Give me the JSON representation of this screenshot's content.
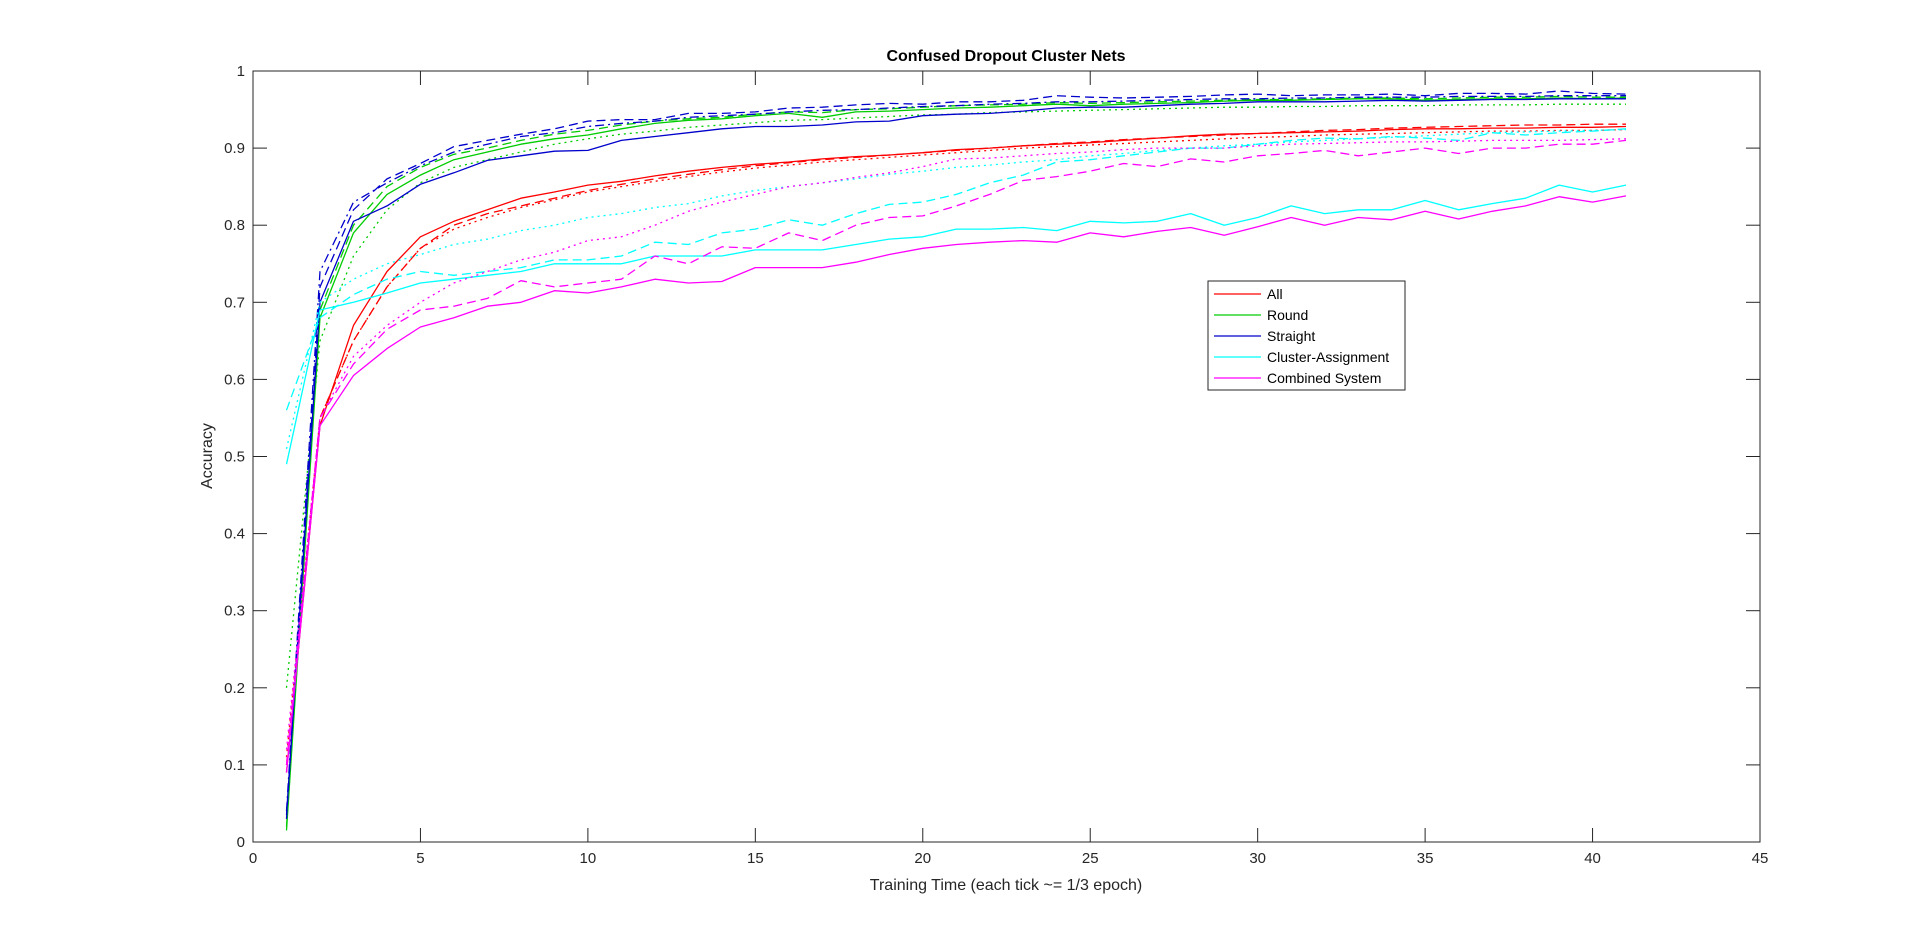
{
  "chart_data": {
    "type": "line",
    "title": "Confused Dropout Cluster Nets",
    "xlabel": "Training Time (each tick ~= 1/3 epoch)",
    "ylabel": "Accuracy",
    "xlim": [
      0,
      45
    ],
    "ylim": [
      0,
      1
    ],
    "xticks": [
      0,
      5,
      10,
      15,
      20,
      25,
      30,
      35,
      40,
      45
    ],
    "yticks": [
      0,
      0.1,
      0.2,
      0.3,
      0.4,
      0.5,
      0.6,
      0.7,
      0.8,
      0.9,
      1
    ],
    "grid": false,
    "legend_position": "center-right",
    "x": [
      1,
      2,
      3,
      4,
      5,
      6,
      7,
      8,
      9,
      10,
      11,
      12,
      13,
      14,
      15,
      16,
      17,
      18,
      19,
      20,
      21,
      22,
      23,
      24,
      25,
      26,
      27,
      28,
      29,
      30,
      31,
      32,
      33,
      34,
      35,
      36,
      37,
      38,
      39,
      40,
      41
    ],
    "legend": [
      {
        "label": "All",
        "color": "#ff0000"
      },
      {
        "label": "Round",
        "color": "#00cc00"
      },
      {
        "label": "Straight",
        "color": "#0000cc"
      },
      {
        "label": "Cluster-Assignment",
        "color": "#00ffff"
      },
      {
        "label": "Combined System",
        "color": "#ff00ff"
      }
    ],
    "series": [
      {
        "group": "All",
        "style": "solid",
        "color": "#ff0000",
        "values": [
          0.09,
          0.54,
          0.67,
          0.74,
          0.785,
          0.805,
          0.82,
          0.835,
          0.843,
          0.852,
          0.857,
          0.864,
          0.87,
          0.875,
          0.879,
          0.882,
          0.886,
          0.889,
          0.891,
          0.894,
          0.898,
          0.9,
          0.903,
          0.905,
          0.907,
          0.91,
          0.913,
          0.916,
          0.918,
          0.919,
          0.92,
          0.921,
          0.922,
          0.924,
          0.925,
          0.925,
          0.926,
          0.926,
          0.927,
          0.927,
          0.928
        ]
      },
      {
        "group": "All",
        "style": "dashed",
        "color": "#ff0000",
        "values": [
          0.1,
          0.55,
          0.65,
          0.72,
          0.77,
          0.8,
          0.815,
          0.825,
          0.835,
          0.845,
          0.853,
          0.86,
          0.866,
          0.872,
          0.877,
          0.881,
          0.885,
          0.888,
          0.891,
          0.894,
          0.897,
          0.9,
          0.903,
          0.906,
          0.908,
          0.911,
          0.913,
          0.915,
          0.917,
          0.919,
          0.921,
          0.923,
          0.924,
          0.926,
          0.927,
          0.928,
          0.929,
          0.93,
          0.93,
          0.931,
          0.931
        ]
      },
      {
        "group": "All",
        "style": "dotted",
        "color": "#ff0000",
        "values": [
          0.11,
          0.55,
          0.65,
          0.72,
          0.77,
          0.795,
          0.81,
          0.823,
          0.833,
          0.843,
          0.85,
          0.857,
          0.863,
          0.869,
          0.874,
          0.878,
          0.882,
          0.885,
          0.888,
          0.891,
          0.894,
          0.897,
          0.9,
          0.902,
          0.904,
          0.906,
          0.908,
          0.91,
          0.912,
          0.914,
          0.915,
          0.917,
          0.918,
          0.919,
          0.92,
          0.921,
          0.922,
          0.922,
          0.923,
          0.923,
          0.924
        ]
      },
      {
        "group": "Round",
        "style": "solid",
        "color": "#00cc00",
        "values": [
          0.015,
          0.68,
          0.79,
          0.84,
          0.865,
          0.885,
          0.895,
          0.905,
          0.912,
          0.917,
          0.925,
          0.932,
          0.936,
          0.938,
          0.942,
          0.945,
          0.94,
          0.947,
          0.948,
          0.95,
          0.952,
          0.953,
          0.955,
          0.957,
          0.955,
          0.957,
          0.958,
          0.959,
          0.961,
          0.962,
          0.962,
          0.963,
          0.964,
          0.964,
          0.962,
          0.963,
          0.964,
          0.964,
          0.965,
          0.964,
          0.965
        ]
      },
      {
        "group": "Round",
        "style": "dashed",
        "color": "#00cc00",
        "values": [
          0.02,
          0.69,
          0.8,
          0.85,
          0.875,
          0.892,
          0.9,
          0.91,
          0.918,
          0.923,
          0.93,
          0.935,
          0.938,
          0.94,
          0.944,
          0.947,
          0.946,
          0.95,
          0.951,
          0.953,
          0.955,
          0.956,
          0.957,
          0.959,
          0.958,
          0.959,
          0.96,
          0.961,
          0.962,
          0.963,
          0.963,
          0.964,
          0.965,
          0.965,
          0.964,
          0.965,
          0.966,
          0.966,
          0.967,
          0.966,
          0.966
        ]
      },
      {
        "group": "Round",
        "style": "dotted",
        "color": "#00cc00",
        "values": [
          0.2,
          0.65,
          0.76,
          0.82,
          0.855,
          0.875,
          0.885,
          0.895,
          0.905,
          0.912,
          0.918,
          0.922,
          0.927,
          0.93,
          0.933,
          0.936,
          0.937,
          0.939,
          0.941,
          0.943,
          0.944,
          0.946,
          0.947,
          0.948,
          0.949,
          0.95,
          0.951,
          0.952,
          0.953,
          0.953,
          0.954,
          0.954,
          0.955,
          0.955,
          0.955,
          0.956,
          0.956,
          0.956,
          0.957,
          0.957,
          0.957
        ]
      },
      {
        "group": "Straight",
        "style": "solid",
        "color": "#0000cc",
        "values": [
          0.035,
          0.7,
          0.805,
          0.825,
          0.853,
          0.868,
          0.884,
          0.89,
          0.896,
          0.897,
          0.91,
          0.915,
          0.92,
          0.925,
          0.928,
          0.928,
          0.93,
          0.934,
          0.935,
          0.942,
          0.944,
          0.945,
          0.948,
          0.952,
          0.953,
          0.953,
          0.955,
          0.957,
          0.958,
          0.96,
          0.96,
          0.96,
          0.961,
          0.962,
          0.961,
          0.962,
          0.963,
          0.963,
          0.964,
          0.964,
          0.964
        ]
      },
      {
        "group": "Straight",
        "style": "dashed",
        "color": "#0000cc",
        "values": [
          0.03,
          0.72,
          0.82,
          0.86,
          0.88,
          0.902,
          0.91,
          0.918,
          0.925,
          0.935,
          0.937,
          0.937,
          0.945,
          0.945,
          0.947,
          0.952,
          0.953,
          0.956,
          0.958,
          0.957,
          0.96,
          0.96,
          0.962,
          0.968,
          0.966,
          0.965,
          0.966,
          0.967,
          0.969,
          0.97,
          0.968,
          0.969,
          0.969,
          0.97,
          0.968,
          0.971,
          0.971,
          0.97,
          0.974,
          0.971,
          0.97
        ]
      },
      {
        "group": "Straight",
        "style": "dashdot",
        "color": "#0000cc",
        "values": [
          0.04,
          0.74,
          0.83,
          0.855,
          0.877,
          0.895,
          0.905,
          0.915,
          0.92,
          0.928,
          0.932,
          0.935,
          0.94,
          0.942,
          0.944,
          0.947,
          0.949,
          0.95,
          0.952,
          0.954,
          0.955,
          0.957,
          0.958,
          0.96,
          0.96,
          0.961,
          0.962,
          0.963,
          0.964,
          0.964,
          0.965,
          0.965,
          0.966,
          0.966,
          0.966,
          0.967,
          0.967,
          0.967,
          0.968,
          0.968,
          0.968
        ]
      },
      {
        "group": "Cluster-Assignment",
        "style": "solid",
        "color": "#00ffff",
        "values": [
          0.49,
          0.69,
          0.7,
          0.712,
          0.725,
          0.73,
          0.735,
          0.74,
          0.75,
          0.75,
          0.75,
          0.76,
          0.76,
          0.76,
          0.768,
          0.768,
          0.768,
          0.775,
          0.782,
          0.785,
          0.795,
          0.795,
          0.797,
          0.793,
          0.805,
          0.803,
          0.805,
          0.815,
          0.8,
          0.81,
          0.825,
          0.815,
          0.82,
          0.82,
          0.832,
          0.82,
          0.828,
          0.835,
          0.852,
          0.843,
          0.852
        ]
      },
      {
        "group": "Cluster-Assignment",
        "style": "dashed",
        "color": "#00ffff",
        "values": [
          0.56,
          0.68,
          0.71,
          0.73,
          0.74,
          0.735,
          0.74,
          0.745,
          0.755,
          0.755,
          0.76,
          0.778,
          0.775,
          0.79,
          0.795,
          0.807,
          0.8,
          0.815,
          0.827,
          0.83,
          0.84,
          0.855,
          0.865,
          0.882,
          0.885,
          0.89,
          0.895,
          0.9,
          0.9,
          0.905,
          0.91,
          0.913,
          0.912,
          0.915,
          0.913,
          0.91,
          0.92,
          0.917,
          0.92,
          0.922,
          0.925
        ]
      },
      {
        "group": "Cluster-Assignment",
        "style": "dotted",
        "color": "#00ffff",
        "values": [
          0.51,
          0.7,
          0.73,
          0.75,
          0.762,
          0.775,
          0.782,
          0.793,
          0.8,
          0.81,
          0.815,
          0.823,
          0.828,
          0.838,
          0.845,
          0.85,
          0.855,
          0.86,
          0.866,
          0.87,
          0.875,
          0.878,
          0.882,
          0.885,
          0.89,
          0.893,
          0.897,
          0.9,
          0.903,
          0.905,
          0.908,
          0.91,
          0.912,
          0.914,
          0.916,
          0.918,
          0.92,
          0.921,
          0.922,
          0.923,
          0.924
        ]
      },
      {
        "group": "Combined System",
        "style": "solid",
        "color": "#ff00ff",
        "values": [
          0.09,
          0.54,
          0.605,
          0.64,
          0.668,
          0.68,
          0.695,
          0.7,
          0.715,
          0.712,
          0.72,
          0.73,
          0.725,
          0.727,
          0.745,
          0.745,
          0.745,
          0.752,
          0.762,
          0.77,
          0.775,
          0.778,
          0.78,
          0.778,
          0.79,
          0.785,
          0.792,
          0.797,
          0.787,
          0.798,
          0.81,
          0.8,
          0.81,
          0.807,
          0.818,
          0.808,
          0.818,
          0.825,
          0.837,
          0.83,
          0.838
        ]
      },
      {
        "group": "Combined System",
        "style": "dashed",
        "color": "#ff00ff",
        "values": [
          0.1,
          0.55,
          0.62,
          0.665,
          0.69,
          0.695,
          0.705,
          0.728,
          0.72,
          0.725,
          0.73,
          0.76,
          0.75,
          0.772,
          0.77,
          0.79,
          0.78,
          0.8,
          0.81,
          0.812,
          0.825,
          0.84,
          0.858,
          0.863,
          0.87,
          0.88,
          0.876,
          0.886,
          0.882,
          0.89,
          0.893,
          0.897,
          0.89,
          0.895,
          0.9,
          0.893,
          0.9,
          0.9,
          0.905,
          0.905,
          0.91
        ]
      },
      {
        "group": "Combined System",
        "style": "dotted",
        "color": "#ff00ff",
        "values": [
          0.12,
          0.55,
          0.63,
          0.67,
          0.7,
          0.725,
          0.74,
          0.755,
          0.765,
          0.78,
          0.785,
          0.8,
          0.818,
          0.83,
          0.84,
          0.85,
          0.855,
          0.862,
          0.868,
          0.876,
          0.886,
          0.887,
          0.89,
          0.893,
          0.895,
          0.898,
          0.9,
          0.9,
          0.9,
          0.903,
          0.905,
          0.906,
          0.907,
          0.908,
          0.908,
          0.909,
          0.91,
          0.91,
          0.91,
          0.911,
          0.912
        ]
      }
    ]
  }
}
